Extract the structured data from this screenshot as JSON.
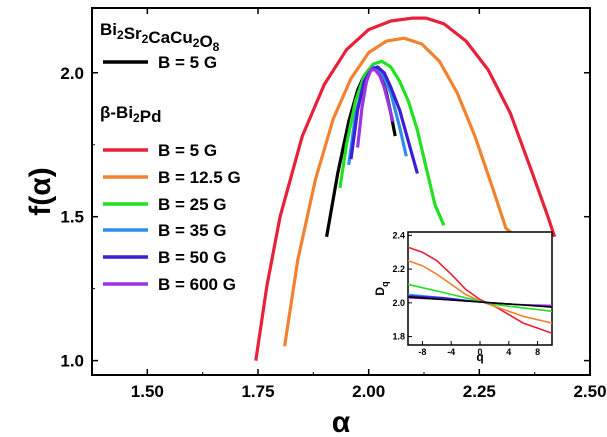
{
  "chart_data": [
    {
      "type": "line",
      "xlabel": "α",
      "ylabel": "f(α)",
      "xlim": [
        1.375,
        2.5
      ],
      "ylim": [
        0.95,
        2.225
      ],
      "x_ticks": [
        1.5,
        1.75,
        2.0,
        2.25,
        2.5
      ],
      "x_tick_labels": [
        "1.50",
        "1.75",
        "2.00",
        "2.25",
        "2.50"
      ],
      "y_ticks": [
        1.0,
        1.5,
        2.0
      ],
      "y_tick_labels": [
        "1.0",
        "1.5",
        "2.0"
      ],
      "legend_groups": [
        {
          "title_base": "Bi",
          "title_parts": [
            {
              "t": "Bi",
              "sub": "2"
            },
            {
              "t": "Sr",
              "sub": "2"
            },
            {
              "t": "CaCu",
              "sub": "2"
            },
            {
              "t": "O",
              "sub": "8"
            }
          ],
          "title": "Bi2Sr2CaCu2O8"
        },
        {
          "title_parts": [
            {
              "t": "β-Bi",
              "sub": "2"
            },
            {
              "t": "Pd",
              "sub": ""
            }
          ],
          "title": "β-Bi2Pd"
        }
      ],
      "series": [
        {
          "name": "B = 5 G",
          "group": 0,
          "color": "#000000",
          "x": [
            1.905,
            1.93,
            1.955,
            1.975,
            1.99,
            2.0,
            2.01,
            2.02,
            2.03,
            2.04,
            2.05,
            2.06
          ],
          "y": [
            1.43,
            1.65,
            1.83,
            1.94,
            1.99,
            2.01,
            2.02,
            2.01,
            1.98,
            1.93,
            1.86,
            1.78
          ]
        },
        {
          "name": "B = 5 G",
          "group": 1,
          "color": "#e8203a",
          "x": [
            1.745,
            1.77,
            1.8,
            1.85,
            1.9,
            1.95,
            2.0,
            2.05,
            2.1,
            2.13,
            2.17,
            2.22,
            2.27,
            2.32,
            2.37,
            2.405,
            2.42
          ],
          "y": [
            1.0,
            1.26,
            1.5,
            1.78,
            1.96,
            2.08,
            2.15,
            2.18,
            2.19,
            2.19,
            2.17,
            2.11,
            2.01,
            1.86,
            1.65,
            1.5,
            1.43
          ]
        },
        {
          "name": "B = 12.5 G",
          "group": 1,
          "color": "#f28230",
          "x": [
            1.81,
            1.84,
            1.88,
            1.92,
            1.96,
            2.0,
            2.04,
            2.08,
            2.12,
            2.16,
            2.2,
            2.24,
            2.28,
            2.31,
            2.325
          ],
          "y": [
            1.05,
            1.35,
            1.63,
            1.84,
            1.98,
            2.07,
            2.11,
            2.12,
            2.1,
            2.04,
            1.93,
            1.78,
            1.6,
            1.46,
            1.44
          ]
        },
        {
          "name": "B = 25 G",
          "group": 1,
          "color": "#22e022",
          "x": [
            1.935,
            1.95,
            1.97,
            1.99,
            2.01,
            2.03,
            2.05,
            2.07,
            2.09,
            2.11,
            2.13,
            2.15,
            2.17
          ],
          "y": [
            1.6,
            1.75,
            1.9,
            1.99,
            2.03,
            2.04,
            2.02,
            1.97,
            1.9,
            1.8,
            1.67,
            1.54,
            1.47
          ]
        },
        {
          "name": "B = 35 G",
          "group": 1,
          "color": "#2b8ee8",
          "x": [
            1.955,
            1.97,
            1.99,
            2.01,
            2.03,
            2.05,
            2.07,
            2.085
          ],
          "y": [
            1.68,
            1.85,
            1.97,
            2.02,
            2.0,
            1.93,
            1.81,
            1.71
          ]
        },
        {
          "name": "B = 50 G",
          "group": 1,
          "color": "#3a1fd6",
          "x": [
            1.96,
            1.975,
            1.99,
            2.005,
            2.02,
            2.035,
            2.05,
            2.07,
            2.09,
            2.11
          ],
          "y": [
            1.7,
            1.87,
            1.97,
            2.01,
            2.02,
            2.0,
            1.95,
            1.87,
            1.76,
            1.65
          ]
        },
        {
          "name": "B = 600 G",
          "group": 1,
          "color": "#9a35e0",
          "x": [
            1.975,
            1.985,
            1.995,
            2.005,
            2.015,
            2.025,
            2.035,
            2.045,
            2.055
          ],
          "y": [
            1.74,
            1.88,
            1.97,
            2.01,
            2.01,
            1.99,
            1.95,
            1.89,
            1.83
          ]
        }
      ]
    },
    {
      "type": "line",
      "xlabel": "q",
      "ylabel_parts": [
        {
          "t": "D",
          "sub": "q"
        }
      ],
      "ylabel": "Dq",
      "xlim": [
        -10,
        10
      ],
      "ylim": [
        1.75,
        2.42
      ],
      "x_ticks": [
        -8,
        -4,
        0,
        4,
        8
      ],
      "x_tick_labels": [
        "-8",
        "-4",
        "0",
        "4",
        "8"
      ],
      "y_ticks": [
        1.8,
        2.0,
        2.2,
        2.4
      ],
      "y_tick_labels": [
        "1.8",
        "2.0",
        "2.2",
        "2.4"
      ],
      "series": [
        {
          "color": "#e8203a",
          "x": [
            -10,
            -8,
            -6,
            -4,
            -2,
            0,
            2,
            4,
            6,
            8,
            10
          ],
          "y": [
            2.33,
            2.3,
            2.25,
            2.17,
            2.08,
            2.02,
            1.98,
            1.93,
            1.88,
            1.85,
            1.82
          ]
        },
        {
          "color": "#f28230",
          "x": [
            -10,
            -8,
            -6,
            -4,
            -2,
            0,
            2,
            4,
            6,
            8,
            10
          ],
          "y": [
            2.25,
            2.22,
            2.17,
            2.11,
            2.05,
            2.01,
            1.98,
            1.95,
            1.92,
            1.9,
            1.88
          ]
        },
        {
          "color": "#22e022",
          "x": [
            -10,
            -8,
            -6,
            -4,
            -2,
            0,
            2,
            4,
            6,
            8,
            10
          ],
          "y": [
            2.11,
            2.09,
            2.07,
            2.05,
            2.03,
            2.01,
            1.99,
            1.98,
            1.97,
            1.96,
            1.95
          ]
        },
        {
          "color": "#2b8ee8",
          "x": [
            -10,
            -5,
            0,
            5,
            10
          ],
          "y": [
            2.05,
            2.03,
            2.005,
            1.99,
            1.98
          ]
        },
        {
          "color": "#3a1fd6",
          "x": [
            -10,
            -5,
            0,
            5,
            10
          ],
          "y": [
            2.04,
            2.03,
            2.005,
            1.99,
            1.98
          ]
        },
        {
          "color": "#9a35e0",
          "x": [
            -10,
            -5,
            0,
            5,
            10
          ],
          "y": [
            2.03,
            2.02,
            2.005,
            1.99,
            1.985
          ]
        },
        {
          "color": "#000000",
          "x": [
            -10,
            -5,
            0,
            5,
            10
          ],
          "y": [
            2.035,
            2.02,
            2.005,
            1.99,
            1.975
          ]
        }
      ]
    }
  ]
}
